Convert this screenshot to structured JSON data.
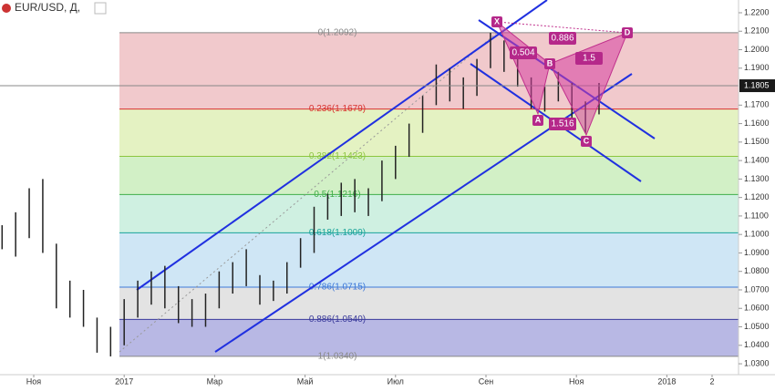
{
  "chart_data": {
    "type": "range",
    "title": "EUR/USD, Д,",
    "x": [
      -0.7,
      -0.4,
      -0.1,
      0.2,
      0.5,
      0.8,
      1.1,
      1.4,
      1.7,
      2.0,
      2.3,
      2.6,
      2.9,
      3.2,
      3.5,
      3.8,
      4.1,
      4.4,
      4.7,
      5.0,
      5.3,
      5.6,
      5.9,
      6.2,
      6.5,
      6.8,
      7.1,
      7.4,
      7.7,
      8.0,
      8.3,
      8.6,
      8.9,
      9.2,
      9.5,
      9.8,
      10.1,
      10.4,
      10.7,
      11.0,
      11.3,
      11.6,
      11.9,
      12.2,
      12.5
    ],
    "high": [
      1.105,
      1.112,
      1.125,
      1.13,
      1.095,
      1.075,
      1.07,
      1.055,
      1.05,
      1.065,
      1.075,
      1.08,
      1.083,
      1.072,
      1.065,
      1.068,
      1.08,
      1.085,
      1.092,
      1.078,
      1.075,
      1.085,
      1.098,
      1.115,
      1.122,
      1.128,
      1.13,
      1.125,
      1.14,
      1.148,
      1.16,
      1.175,
      1.192,
      1.19,
      1.185,
      1.195,
      1.2092,
      1.205,
      1.198,
      1.185,
      1.18,
      1.188,
      1.182,
      1.172,
      1.182
    ],
    "low": [
      1.092,
      1.088,
      1.098,
      1.09,
      1.06,
      1.055,
      1.05,
      1.036,
      1.034,
      1.04,
      1.055,
      1.062,
      1.06,
      1.052,
      1.05,
      1.05,
      1.06,
      1.068,
      1.072,
      1.062,
      1.064,
      1.068,
      1.082,
      1.09,
      1.108,
      1.11,
      1.112,
      1.11,
      1.118,
      1.13,
      1.142,
      1.155,
      1.17,
      1.172,
      1.168,
      1.175,
      1.19,
      1.188,
      1.18,
      1.168,
      1.1665,
      1.172,
      1.162,
      1.155,
      1.165
    ],
    "color": "#222222",
    "xlim": [
      -0.746,
      15.585
    ],
    "xticks": [
      {
        "value": 0,
        "label": "Ноя"
      },
      {
        "value": 2,
        "label": "2017"
      },
      {
        "value": 4,
        "label": "Мар"
      },
      {
        "value": 6,
        "label": "Май"
      },
      {
        "value": 8,
        "label": "Июл"
      },
      {
        "value": 10,
        "label": "Сен"
      },
      {
        "value": 12,
        "label": "Ноя"
      },
      {
        "value": 14,
        "label": "2018"
      },
      {
        "value": 15,
        "label": "2"
      }
    ],
    "ylim": [
      1.0241,
      1.2269
    ],
    "yticks": [
      {
        "value": 1.22,
        "label": "1.2200"
      },
      {
        "value": 1.21,
        "label": "1.2100"
      },
      {
        "value": 1.2,
        "label": "1.2000"
      },
      {
        "value": 1.19,
        "label": "1.1900"
      },
      {
        "value": 1.17,
        "label": "1.1700"
      },
      {
        "value": 1.16,
        "label": "1.1600"
      },
      {
        "value": 1.15,
        "label": "1.1500"
      },
      {
        "value": 1.14,
        "label": "1.1400"
      },
      {
        "value": 1.13,
        "label": "1.1300"
      },
      {
        "value": 1.12,
        "label": "1.1200"
      },
      {
        "value": 1.11,
        "label": "1.1100"
      },
      {
        "value": 1.1,
        "label": "1.1000"
      },
      {
        "value": 1.09,
        "label": "1.0900"
      },
      {
        "value": 1.08,
        "label": "1.0800"
      },
      {
        "value": 1.07,
        "label": "1.0700"
      },
      {
        "value": 1.06,
        "label": "1.0600"
      },
      {
        "value": 1.05,
        "label": "1.0500"
      },
      {
        "value": 1.04,
        "label": "1.0400"
      },
      {
        "value": 1.03,
        "label": "1.0300"
      }
    ],
    "last_price": {
      "value": 1.1805,
      "label": "1.1805"
    },
    "fib_levels": [
      {
        "value": 1.2092,
        "label": "0(1.2092)",
        "color": "#888888",
        "fill": "#f1c9cc"
      },
      {
        "value": 1.1679,
        "label": "0.236(1.1679)",
        "color": "#d9322f",
        "fill": "#e4f2c2"
      },
      {
        "value": 1.1423,
        "label": "0.382(1.1423)",
        "color": "#8cc63f",
        "fill": "#d2f0c6"
      },
      {
        "value": 1.1216,
        "label": "0.5(1.1216)",
        "color": "#3fae49",
        "fill": "#cff0e1"
      },
      {
        "value": 1.1009,
        "label": "0.618(1.1009)",
        "color": "#1aa39a",
        "fill": "#cfe6f5"
      },
      {
        "value": 1.0715,
        "label": "0.786(1.0715)",
        "color": "#3c78d8",
        "fill": "#e3e3e3"
      },
      {
        "value": 1.054,
        "label": "0.886(1.0540)",
        "color": "#3b3b9b",
        "fill": "#b8b8e4"
      },
      {
        "value": 1.034,
        "label": "1(1.0340)",
        "color": "#888888"
      }
    ],
    "pattern": {
      "points": [
        "X",
        "A",
        "B",
        "C",
        "D"
      ],
      "ratios": [
        0.886,
        0.504,
        1.5,
        1.516
      ]
    }
  }
}
